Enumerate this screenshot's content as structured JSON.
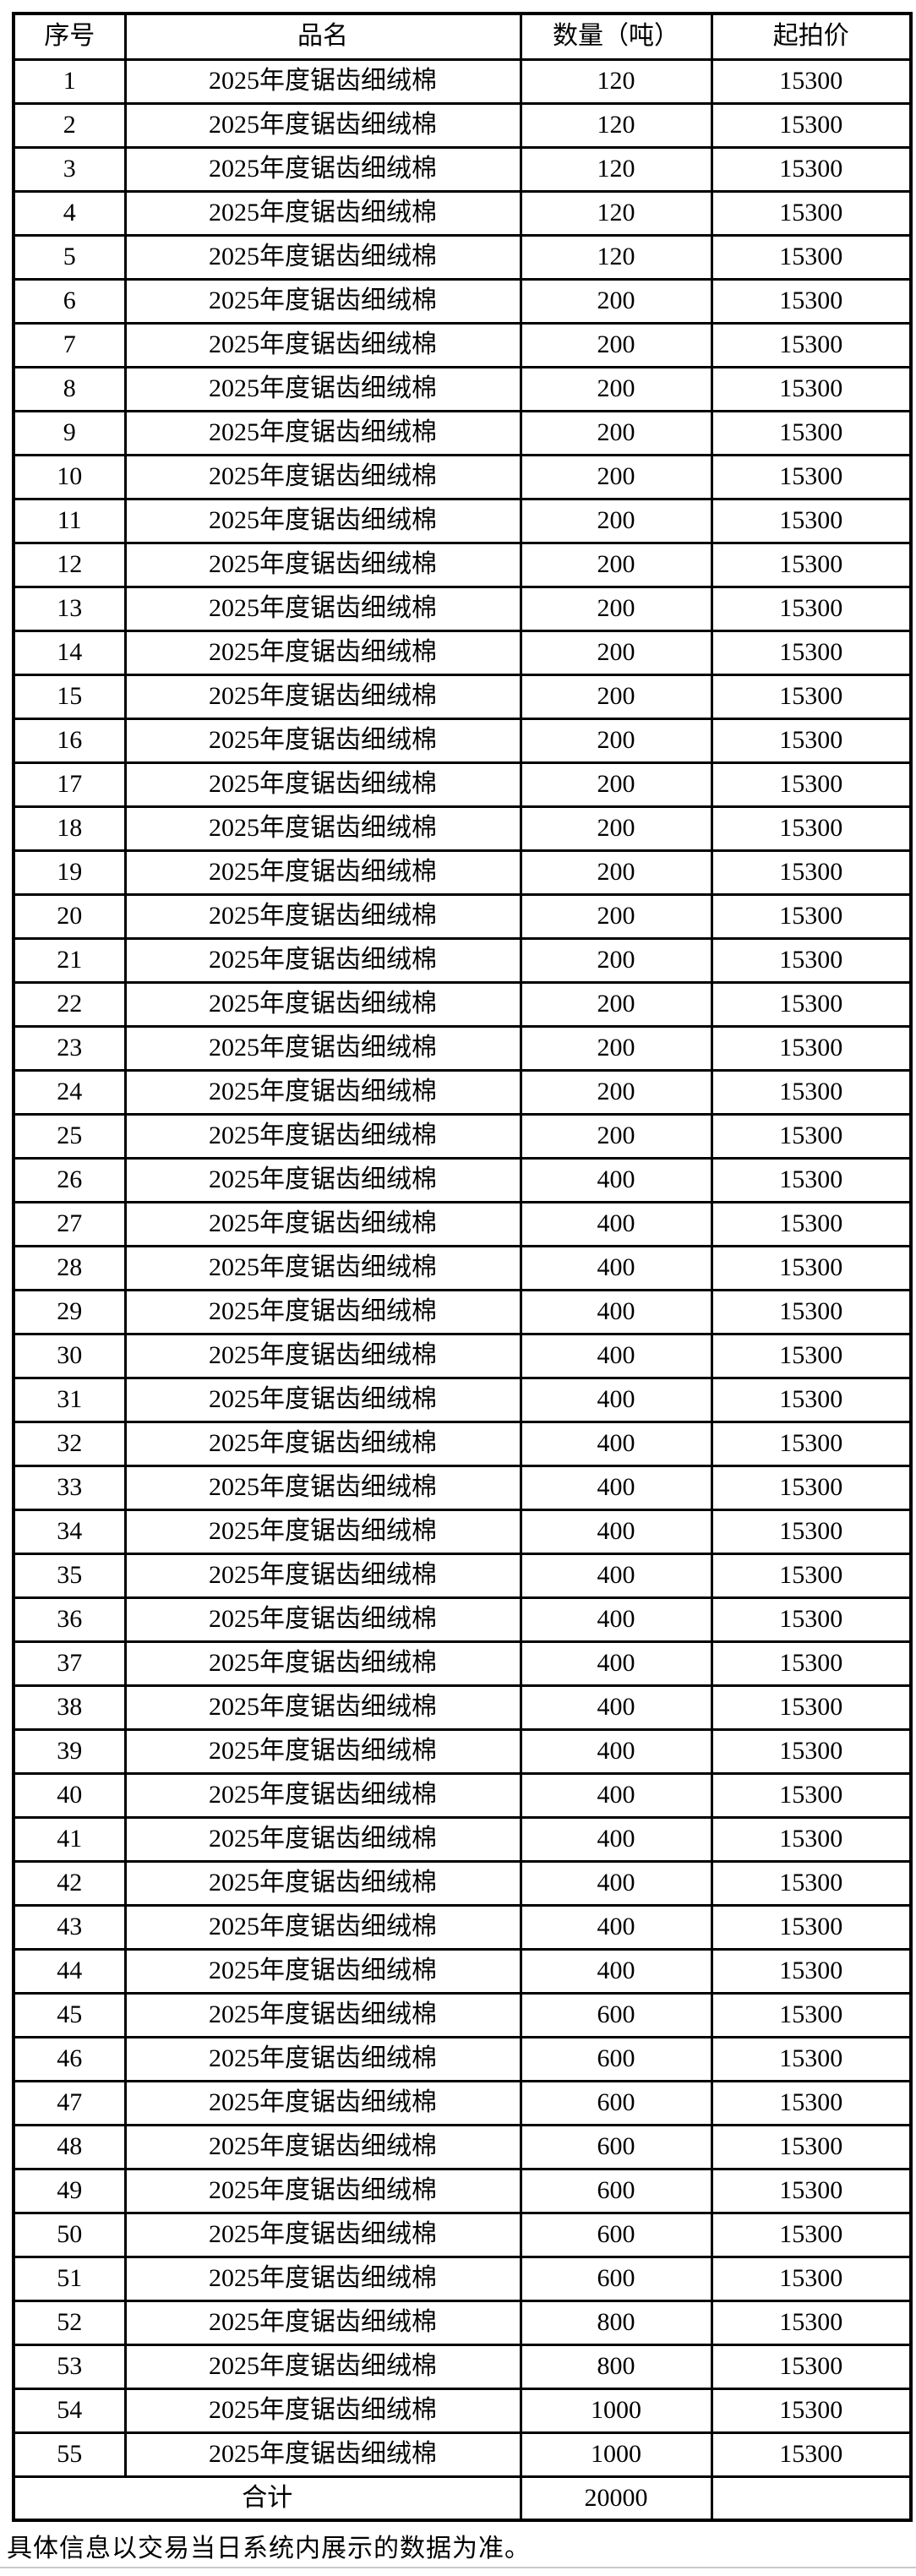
{
  "table": {
    "headers": {
      "serial": "序号",
      "name": "品名",
      "quantity": "数量（吨）",
      "price": "起拍价"
    },
    "rows": [
      {
        "no": "1",
        "name": "2025年度锯齿细绒棉",
        "qty": "120",
        "price": "15300"
      },
      {
        "no": "2",
        "name": "2025年度锯齿细绒棉",
        "qty": "120",
        "price": "15300"
      },
      {
        "no": "3",
        "name": "2025年度锯齿细绒棉",
        "qty": "120",
        "price": "15300"
      },
      {
        "no": "4",
        "name": "2025年度锯齿细绒棉",
        "qty": "120",
        "price": "15300"
      },
      {
        "no": "5",
        "name": "2025年度锯齿细绒棉",
        "qty": "120",
        "price": "15300"
      },
      {
        "no": "6",
        "name": "2025年度锯齿细绒棉",
        "qty": "200",
        "price": "15300"
      },
      {
        "no": "7",
        "name": "2025年度锯齿细绒棉",
        "qty": "200",
        "price": "15300"
      },
      {
        "no": "8",
        "name": "2025年度锯齿细绒棉",
        "qty": "200",
        "price": "15300"
      },
      {
        "no": "9",
        "name": "2025年度锯齿细绒棉",
        "qty": "200",
        "price": "15300"
      },
      {
        "no": "10",
        "name": "2025年度锯齿细绒棉",
        "qty": "200",
        "price": "15300"
      },
      {
        "no": "11",
        "name": "2025年度锯齿细绒棉",
        "qty": "200",
        "price": "15300"
      },
      {
        "no": "12",
        "name": "2025年度锯齿细绒棉",
        "qty": "200",
        "price": "15300"
      },
      {
        "no": "13",
        "name": "2025年度锯齿细绒棉",
        "qty": "200",
        "price": "15300"
      },
      {
        "no": "14",
        "name": "2025年度锯齿细绒棉",
        "qty": "200",
        "price": "15300"
      },
      {
        "no": "15",
        "name": "2025年度锯齿细绒棉",
        "qty": "200",
        "price": "15300"
      },
      {
        "no": "16",
        "name": "2025年度锯齿细绒棉",
        "qty": "200",
        "price": "15300"
      },
      {
        "no": "17",
        "name": "2025年度锯齿细绒棉",
        "qty": "200",
        "price": "15300"
      },
      {
        "no": "18",
        "name": "2025年度锯齿细绒棉",
        "qty": "200",
        "price": "15300"
      },
      {
        "no": "19",
        "name": "2025年度锯齿细绒棉",
        "qty": "200",
        "price": "15300"
      },
      {
        "no": "20",
        "name": "2025年度锯齿细绒棉",
        "qty": "200",
        "price": "15300"
      },
      {
        "no": "21",
        "name": "2025年度锯齿细绒棉",
        "qty": "200",
        "price": "15300"
      },
      {
        "no": "22",
        "name": "2025年度锯齿细绒棉",
        "qty": "200",
        "price": "15300"
      },
      {
        "no": "23",
        "name": "2025年度锯齿细绒棉",
        "qty": "200",
        "price": "15300"
      },
      {
        "no": "24",
        "name": "2025年度锯齿细绒棉",
        "qty": "200",
        "price": "15300"
      },
      {
        "no": "25",
        "name": "2025年度锯齿细绒棉",
        "qty": "200",
        "price": "15300"
      },
      {
        "no": "26",
        "name": "2025年度锯齿细绒棉",
        "qty": "400",
        "price": "15300"
      },
      {
        "no": "27",
        "name": "2025年度锯齿细绒棉",
        "qty": "400",
        "price": "15300"
      },
      {
        "no": "28",
        "name": "2025年度锯齿细绒棉",
        "qty": "400",
        "price": "15300"
      },
      {
        "no": "29",
        "name": "2025年度锯齿细绒棉",
        "qty": "400",
        "price": "15300"
      },
      {
        "no": "30",
        "name": "2025年度锯齿细绒棉",
        "qty": "400",
        "price": "15300"
      },
      {
        "no": "31",
        "name": "2025年度锯齿细绒棉",
        "qty": "400",
        "price": "15300"
      },
      {
        "no": "32",
        "name": "2025年度锯齿细绒棉",
        "qty": "400",
        "price": "15300"
      },
      {
        "no": "33",
        "name": "2025年度锯齿细绒棉",
        "qty": "400",
        "price": "15300"
      },
      {
        "no": "34",
        "name": "2025年度锯齿细绒棉",
        "qty": "400",
        "price": "15300"
      },
      {
        "no": "35",
        "name": "2025年度锯齿细绒棉",
        "qty": "400",
        "price": "15300"
      },
      {
        "no": "36",
        "name": "2025年度锯齿细绒棉",
        "qty": "400",
        "price": "15300"
      },
      {
        "no": "37",
        "name": "2025年度锯齿细绒棉",
        "qty": "400",
        "price": "15300"
      },
      {
        "no": "38",
        "name": "2025年度锯齿细绒棉",
        "qty": "400",
        "price": "15300"
      },
      {
        "no": "39",
        "name": "2025年度锯齿细绒棉",
        "qty": "400",
        "price": "15300"
      },
      {
        "no": "40",
        "name": "2025年度锯齿细绒棉",
        "qty": "400",
        "price": "15300"
      },
      {
        "no": "41",
        "name": "2025年度锯齿细绒棉",
        "qty": "400",
        "price": "15300"
      },
      {
        "no": "42",
        "name": "2025年度锯齿细绒棉",
        "qty": "400",
        "price": "15300"
      },
      {
        "no": "43",
        "name": "2025年度锯齿细绒棉",
        "qty": "400",
        "price": "15300"
      },
      {
        "no": "44",
        "name": "2025年度锯齿细绒棉",
        "qty": "400",
        "price": "15300"
      },
      {
        "no": "45",
        "name": "2025年度锯齿细绒棉",
        "qty": "600",
        "price": "15300"
      },
      {
        "no": "46",
        "name": "2025年度锯齿细绒棉",
        "qty": "600",
        "price": "15300"
      },
      {
        "no": "47",
        "name": "2025年度锯齿细绒棉",
        "qty": "600",
        "price": "15300"
      },
      {
        "no": "48",
        "name": "2025年度锯齿细绒棉",
        "qty": "600",
        "price": "15300"
      },
      {
        "no": "49",
        "name": "2025年度锯齿细绒棉",
        "qty": "600",
        "price": "15300"
      },
      {
        "no": "50",
        "name": "2025年度锯齿细绒棉",
        "qty": "600",
        "price": "15300"
      },
      {
        "no": "51",
        "name": "2025年度锯齿细绒棉",
        "qty": "600",
        "price": "15300"
      },
      {
        "no": "52",
        "name": "2025年度锯齿细绒棉",
        "qty": "800",
        "price": "15300"
      },
      {
        "no": "53",
        "name": "2025年度锯齿细绒棉",
        "qty": "800",
        "price": "15300"
      },
      {
        "no": "54",
        "name": "2025年度锯齿细绒棉",
        "qty": "1000",
        "price": "15300"
      },
      {
        "no": "55",
        "name": "2025年度锯齿细绒棉",
        "qty": "1000",
        "price": "15300"
      }
    ],
    "total": {
      "label": "合计",
      "quantity": "20000",
      "price": ""
    }
  },
  "footer": {
    "note": "具体信息以交易当日系统内展示的数据为准。"
  }
}
